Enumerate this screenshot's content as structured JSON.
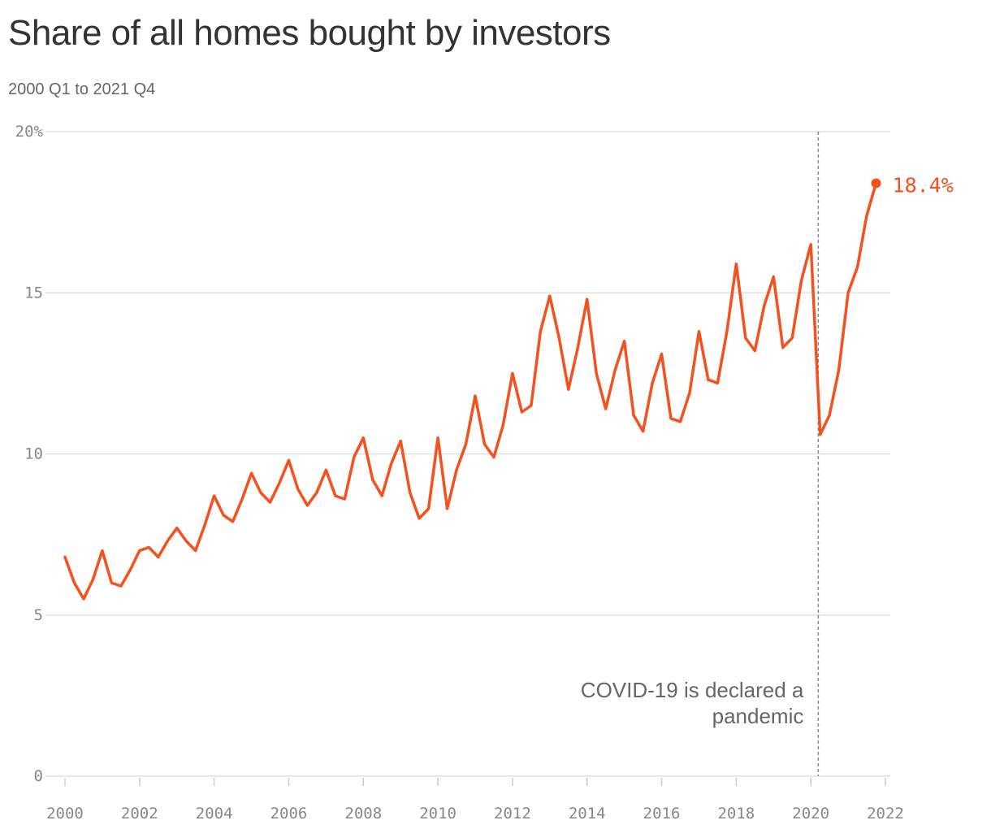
{
  "chart_data": {
    "type": "line",
    "title": "Share of all homes bought by investors",
    "subtitle": "2000 Q1 to 2021 Q4",
    "xlabel": "",
    "ylabel": "",
    "xlim": [
      2000,
      2022
    ],
    "ylim": [
      0,
      20
    ],
    "x_ticks": [
      {
        "value": 2000,
        "label": "2000"
      },
      {
        "value": 2002,
        "label": "2002"
      },
      {
        "value": 2004,
        "label": "2004"
      },
      {
        "value": 2006,
        "label": "2006"
      },
      {
        "value": 2008,
        "label": "2008"
      },
      {
        "value": 2010,
        "label": "2010"
      },
      {
        "value": 2012,
        "label": "2012"
      },
      {
        "value": 2014,
        "label": "2014"
      },
      {
        "value": 2016,
        "label": "2016"
      },
      {
        "value": 2018,
        "label": "2018"
      },
      {
        "value": 2020,
        "label": "2020"
      },
      {
        "value": 2022,
        "label": "2022"
      }
    ],
    "y_ticks": [
      {
        "value": 0,
        "label": "0"
      },
      {
        "value": 5,
        "label": "5"
      },
      {
        "value": 10,
        "label": "10"
      },
      {
        "value": 15,
        "label": "15"
      },
      {
        "value": 20,
        "label": "20%"
      }
    ],
    "grid": true,
    "line_color": "#f5511e",
    "grid_color": "#e0e0e0",
    "series": [
      {
        "color": "#f5511e",
        "x": [
          "2000 Q1",
          "2000 Q2",
          "2000 Q3",
          "2000 Q4",
          "2001 Q1",
          "2001 Q2",
          "2001 Q3",
          "2001 Q4",
          "2002 Q1",
          "2002 Q2",
          "2002 Q3",
          "2002 Q4",
          "2003 Q1",
          "2003 Q2",
          "2003 Q3",
          "2003 Q4",
          "2004 Q1",
          "2004 Q2",
          "2004 Q3",
          "2004 Q4",
          "2005 Q1",
          "2005 Q2",
          "2005 Q3",
          "2005 Q4",
          "2006 Q1",
          "2006 Q2",
          "2006 Q3",
          "2006 Q4",
          "2007 Q1",
          "2007 Q2",
          "2007 Q3",
          "2007 Q4",
          "2008 Q1",
          "2008 Q2",
          "2008 Q3",
          "2008 Q4",
          "2009 Q1",
          "2009 Q2",
          "2009 Q3",
          "2009 Q4",
          "2010 Q1",
          "2010 Q2",
          "2010 Q3",
          "2010 Q4",
          "2011 Q1",
          "2011 Q2",
          "2011 Q3",
          "2011 Q4",
          "2012 Q1",
          "2012 Q2",
          "2012 Q3",
          "2012 Q4",
          "2013 Q1",
          "2013 Q2",
          "2013 Q3",
          "2013 Q4",
          "2014 Q1",
          "2014 Q2",
          "2014 Q3",
          "2014 Q4",
          "2015 Q1",
          "2015 Q2",
          "2015 Q3",
          "2015 Q4",
          "2016 Q1",
          "2016 Q2",
          "2016 Q3",
          "2016 Q4",
          "2017 Q1",
          "2017 Q2",
          "2017 Q3",
          "2017 Q4",
          "2018 Q1",
          "2018 Q2",
          "2018 Q3",
          "2018 Q4",
          "2019 Q1",
          "2019 Q2",
          "2019 Q3",
          "2019 Q4",
          "2020 Q1",
          "2020 Q2",
          "2020 Q3",
          "2020 Q4",
          "2021 Q1",
          "2021 Q2",
          "2021 Q3",
          "2021 Q4"
        ],
        "values": [
          6.8,
          6.0,
          5.5,
          6.1,
          7.0,
          6.0,
          5.9,
          6.4,
          7.0,
          7.1,
          6.8,
          7.3,
          7.7,
          7.3,
          7.0,
          7.8,
          8.7,
          8.1,
          7.9,
          8.6,
          9.4,
          8.8,
          8.5,
          9.1,
          9.8,
          8.9,
          8.4,
          8.8,
          9.5,
          8.7,
          8.6,
          9.9,
          10.5,
          9.2,
          8.7,
          9.7,
          10.4,
          8.8,
          8.0,
          8.3,
          10.5,
          8.3,
          9.5,
          10.3,
          11.8,
          10.3,
          9.9,
          10.9,
          12.5,
          11.3,
          11.5,
          13.8,
          14.9,
          13.6,
          12.0,
          13.3,
          14.8,
          12.5,
          11.4,
          12.6,
          13.5,
          11.2,
          10.7,
          12.2,
          13.1,
          11.1,
          11.0,
          11.9,
          13.8,
          12.3,
          12.2,
          13.8,
          15.9,
          13.6,
          13.2,
          14.6,
          15.5,
          13.3,
          13.6,
          15.4,
          16.5,
          10.6,
          11.2,
          12.6,
          15.0,
          15.8,
          17.4,
          18.4
        ]
      }
    ],
    "end_label": "18.4%",
    "annotation": {
      "x": 2020.2,
      "lines": [
        "COVID-19 is declared a",
        "pandemic"
      ]
    }
  }
}
